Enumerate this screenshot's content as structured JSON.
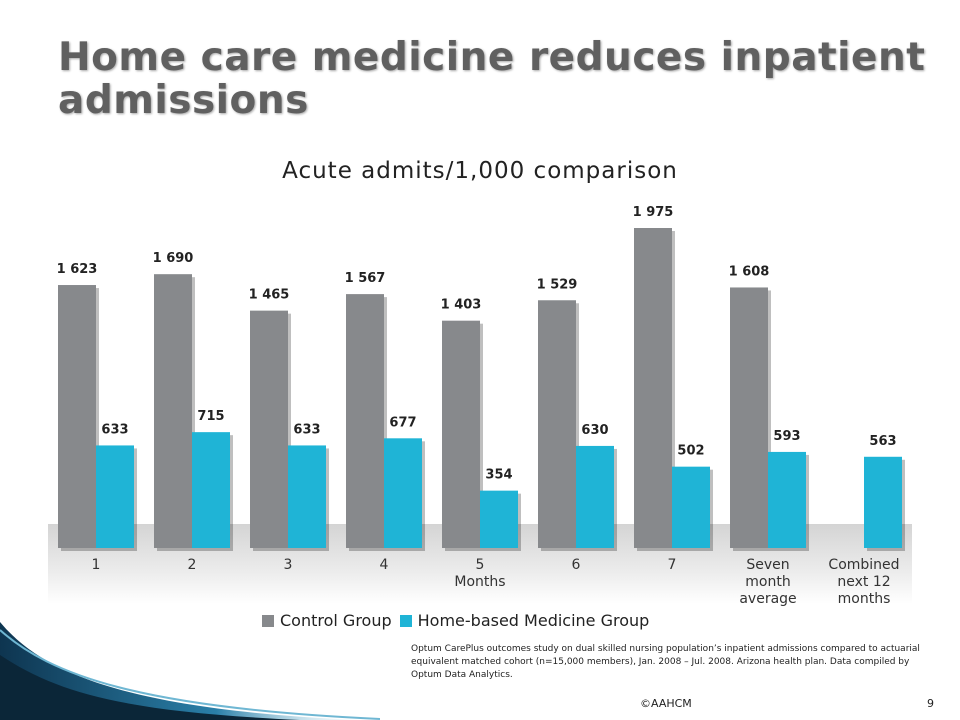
{
  "slide": {
    "title": "Home care medicine reduces inpatient admissions",
    "footer": "©AAHCM",
    "page_number": "9",
    "note": "Optum CarePlus outcomes study on dual skilled nursing population’s inpatient admissions compared to actuarial equivalent matched cohort (n=15,000 members), Jan. 2008 – Jul. 2008. Arizona health plan. Data compiled by Optum Data Analytics."
  },
  "colors": {
    "control": "#87898c",
    "home": "#1fb4d6",
    "floor": "#d9d9d9",
    "title": "#606060"
  },
  "chart_data": {
    "type": "bar",
    "title": "Acute admits/1,000 comparison",
    "categories": [
      "1",
      "2",
      "3",
      "4",
      "5\nMonths",
      "6",
      "7",
      "Seven\nmonth\naverage",
      "Combined\nnext 12\nmonths"
    ],
    "series": [
      {
        "name": "Control Group",
        "values": [
          1623,
          1690,
          1465,
          1567,
          1403,
          1529,
          1975,
          1608,
          null
        ],
        "labels": [
          "1 623",
          "1 690",
          "1 465",
          "1 567",
          "1 403",
          "1 529",
          "1 975",
          "1 608",
          ""
        ]
      },
      {
        "name": "Home-based Medicine Group",
        "values": [
          633,
          715,
          633,
          677,
          354,
          630,
          502,
          593,
          563
        ],
        "labels": [
          "633",
          "715",
          "633",
          "677",
          "354",
          "630",
          "502",
          "593",
          "563"
        ]
      }
    ],
    "legend_position": "bottom",
    "grid": false
  }
}
